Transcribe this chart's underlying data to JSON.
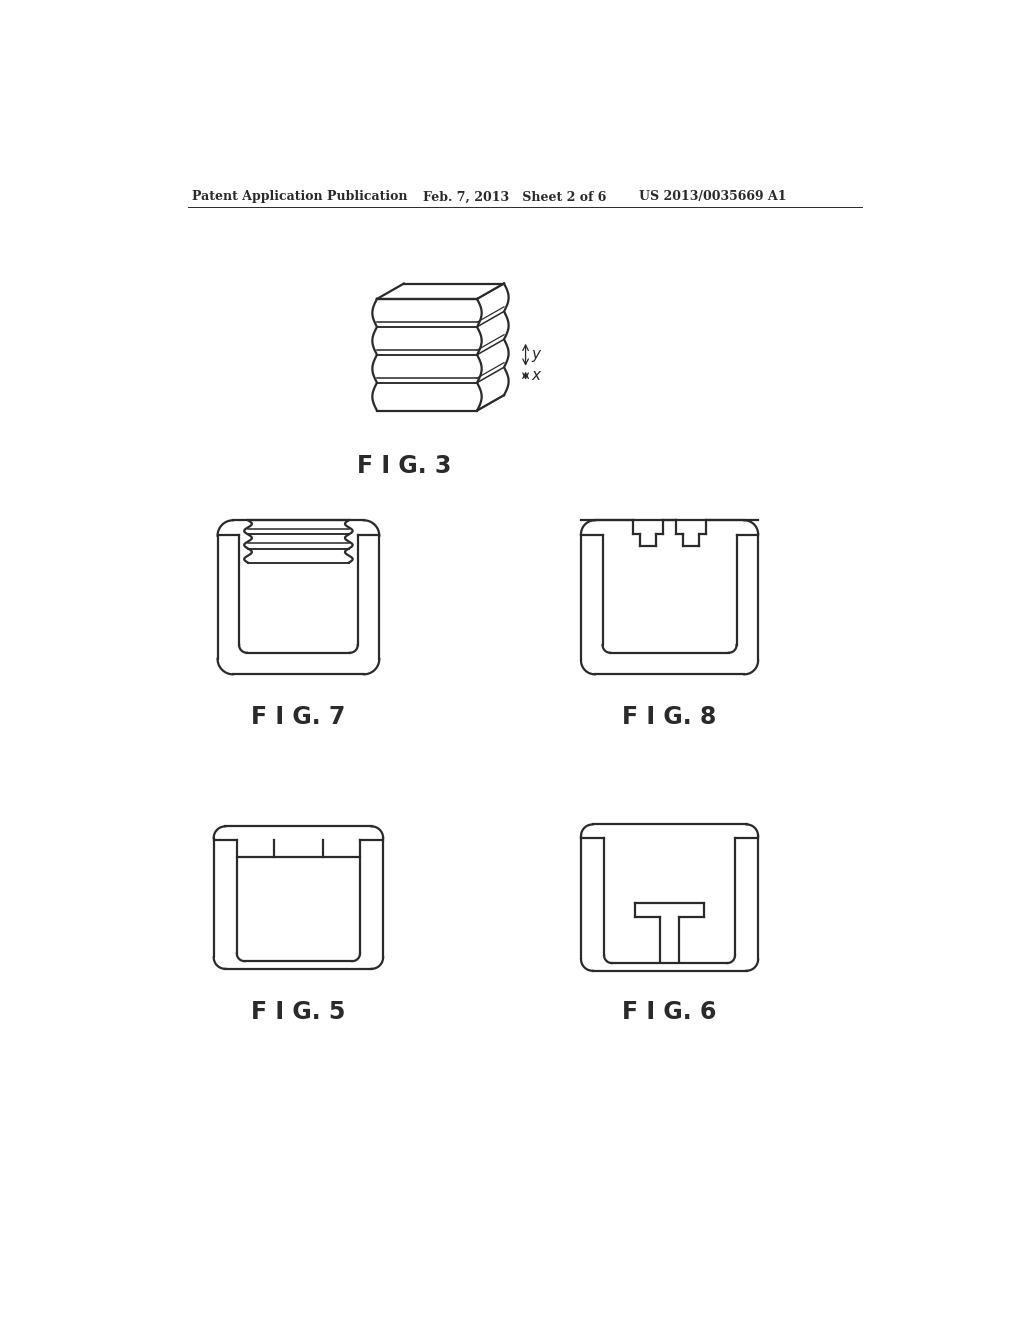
{
  "bg_color": "#ffffff",
  "line_color": "#2a2a2a",
  "header_left": "Patent Application Publication",
  "header_mid": "Feb. 7, 2013   Sheet 2 of 6",
  "header_right": "US 2013/0035669 A1",
  "fig3_label": "F I G. 3",
  "fig7_label": "F I G. 7",
  "fig8_label": "F I G. 8",
  "fig5_label": "F I G. 5",
  "fig6_label": "F I G. 6"
}
